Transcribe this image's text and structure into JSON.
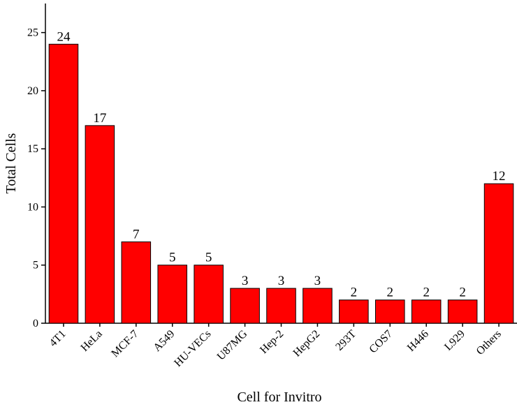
{
  "chart_data": {
    "type": "bar",
    "title": null,
    "x_label": "Cell for Invitro",
    "y_label": "Total Cells",
    "categories": [
      "4T1",
      "HeLa",
      "MCF-7",
      "A549",
      "HU-VECs",
      "U87MG",
      "Hep-2",
      "HepG2",
      "293T",
      "COS7",
      "H446",
      "L929",
      "Others"
    ],
    "values": [
      24,
      17,
      7,
      5,
      5,
      3,
      3,
      3,
      2,
      2,
      2,
      2,
      12
    ],
    "color": "#ff0000",
    "ylim": [
      0,
      27.5
    ],
    "yticks": [
      0,
      5,
      10,
      15,
      20,
      25
    ],
    "grid": false
  }
}
